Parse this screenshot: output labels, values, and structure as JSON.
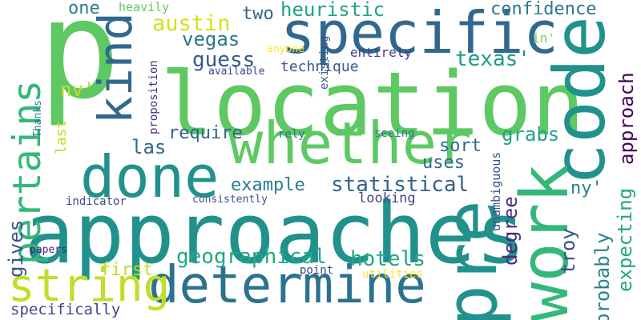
{
  "words": [
    {
      "id": "p",
      "text": "p",
      "color": "#5ec962",
      "vertical": false
    },
    {
      "id": "location",
      "text": "location",
      "color": "#5ec962",
      "vertical": false
    },
    {
      "id": "approaches",
      "text": "approaches",
      "color": "#21918c",
      "vertical": false
    },
    {
      "id": "specific",
      "text": "specific",
      "color": "#31688e",
      "vertical": false
    },
    {
      "id": "code",
      "text": "code",
      "color": "#21918c",
      "vertical": true
    },
    {
      "id": "pre",
      "text": "pre",
      "color": "#21918c",
      "vertical": true
    },
    {
      "id": "work",
      "text": "work",
      "color": "#35b779",
      "vertical": true
    },
    {
      "id": "whether",
      "text": "whether",
      "color": "#5ec962",
      "vertical": false
    },
    {
      "id": "done",
      "text": "done",
      "color": "#21918c",
      "vertical": false
    },
    {
      "id": "determine",
      "text": "determine",
      "color": "#2c728e",
      "vertical": false
    },
    {
      "id": "string",
      "text": "string",
      "color": "#bddf26",
      "vertical": false
    },
    {
      "id": "kind",
      "text": "kind",
      "color": "#31688e",
      "vertical": true
    },
    {
      "id": "pertains",
      "text": "pertains",
      "color": "#35b779",
      "vertical": true
    },
    {
      "id": "geographical",
      "text": "geographical",
      "color": "#22a884",
      "vertical": false
    },
    {
      "id": "hotels",
      "text": "hotels",
      "color": "#22a884",
      "vertical": false
    },
    {
      "id": "heuristic",
      "text": "heuristic",
      "color": "#20a386",
      "vertical": false
    },
    {
      "id": "confidence",
      "text": "confidence",
      "color": "#2a788e",
      "vertical": false
    },
    {
      "id": "austin",
      "text": "austin",
      "color": "#d2e21b",
      "vertical": false
    },
    {
      "id": "vegas",
      "text": "vegas",
      "color": "#2a788e",
      "vertical": false
    },
    {
      "id": "guess",
      "text": "guess",
      "color": "#38588c",
      "vertical": false
    },
    {
      "id": "texas",
      "text": "texas'",
      "color": "#1f978b",
      "vertical": false
    },
    {
      "id": "technique",
      "text": "technique",
      "color": "#38588c",
      "vertical": false
    },
    {
      "id": "entirely",
      "text": "entirely",
      "color": "#443983",
      "vertical": false
    },
    {
      "id": "approach",
      "text": "approach",
      "color": "#440154",
      "vertical": true
    },
    {
      "id": "one",
      "text": "one",
      "color": "#287d8e",
      "vertical": false
    },
    {
      "id": "two",
      "text": "two",
      "color": "#33638d",
      "vertical": false
    },
    {
      "id": "heavily",
      "text": "heavily",
      "color": "#5ec962",
      "vertical": false
    },
    {
      "id": "nv",
      "text": "nv'",
      "color": "#bddf26",
      "vertical": false
    },
    {
      "id": "las",
      "text": "las",
      "color": "#31688e",
      "vertical": false
    },
    {
      "id": "require",
      "text": "require",
      "color": "#33638d",
      "vertical": false
    },
    {
      "id": "grabs",
      "text": "grabs",
      "color": "#20a386",
      "vertical": false
    },
    {
      "id": "sort",
      "text": "sort",
      "color": "#31688e",
      "vertical": false
    },
    {
      "id": "uses",
      "text": "uses",
      "color": "#31688e",
      "vertical": false
    },
    {
      "id": "example",
      "text": "example",
      "color": "#287d8e",
      "vertical": false
    },
    {
      "id": "statistical",
      "text": "statistical",
      "color": "#33638d",
      "vertical": false
    },
    {
      "id": "ny",
      "text": "ny'",
      "color": "#26828e",
      "vertical": false
    },
    {
      "id": "looking",
      "text": "looking",
      "color": "#414487",
      "vertical": false
    },
    {
      "id": "first",
      "text": "first",
      "color": "#bddf26",
      "vertical": false
    },
    {
      "id": "gives",
      "text": "gives",
      "color": "#3b528b",
      "vertical": true
    },
    {
      "id": "degree",
      "text": "degree",
      "color": "#472d7b",
      "vertical": true
    },
    {
      "id": "troy",
      "text": "troy",
      "color": "#3b528b",
      "vertical": true
    },
    {
      "id": "probably",
      "text": "probably",
      "color": "#26828e",
      "vertical": true
    },
    {
      "id": "expecting",
      "text": "expecting",
      "color": "#22a884",
      "vertical": true
    },
    {
      "id": "specifically",
      "text": "specifically",
      "color": "#3e4a89",
      "vertical": false
    },
    {
      "id": "last",
      "text": "last",
      "color": "#bddf26",
      "vertical": true
    },
    {
      "id": "proposition",
      "text": "proposition",
      "color": "#46307e",
      "vertical": true
    },
    {
      "id": "existing",
      "text": "existing",
      "color": "#3b528b",
      "vertical": true
    },
    {
      "id": "thanks",
      "text": "Thanks",
      "color": "#277f8e",
      "vertical": true
    },
    {
      "id": "anyone",
      "text": "anyone",
      "color": "#fde725",
      "vertical": false
    },
    {
      "id": "available",
      "text": "available",
      "color": "#433e85",
      "vertical": false
    },
    {
      "id": "in",
      "text": "in'",
      "color": "#7ad151",
      "vertical": false
    },
    {
      "id": "rely",
      "text": "rely",
      "color": "#2e6e8e",
      "vertical": false
    },
    {
      "id": "seeing",
      "text": "seeing",
      "color": "#2a788e",
      "vertical": false
    },
    {
      "id": "indicator",
      "text": "indicator",
      "color": "#3e4a89",
      "vertical": false
    },
    {
      "id": "consistently",
      "text": "consistently",
      "color": "#3b528b",
      "vertical": false
    },
    {
      "id": "unambiguous",
      "text": "unambiguous",
      "color": "#3b528b",
      "vertical": true
    },
    {
      "id": "papers",
      "text": "papers",
      "color": "#482475",
      "vertical": false
    },
    {
      "id": "point",
      "text": "point",
      "color": "#3e4a89",
      "vertical": false
    },
    {
      "id": "utilities",
      "text": "utilities",
      "color": "#fde725",
      "vertical": false
    }
  ]
}
